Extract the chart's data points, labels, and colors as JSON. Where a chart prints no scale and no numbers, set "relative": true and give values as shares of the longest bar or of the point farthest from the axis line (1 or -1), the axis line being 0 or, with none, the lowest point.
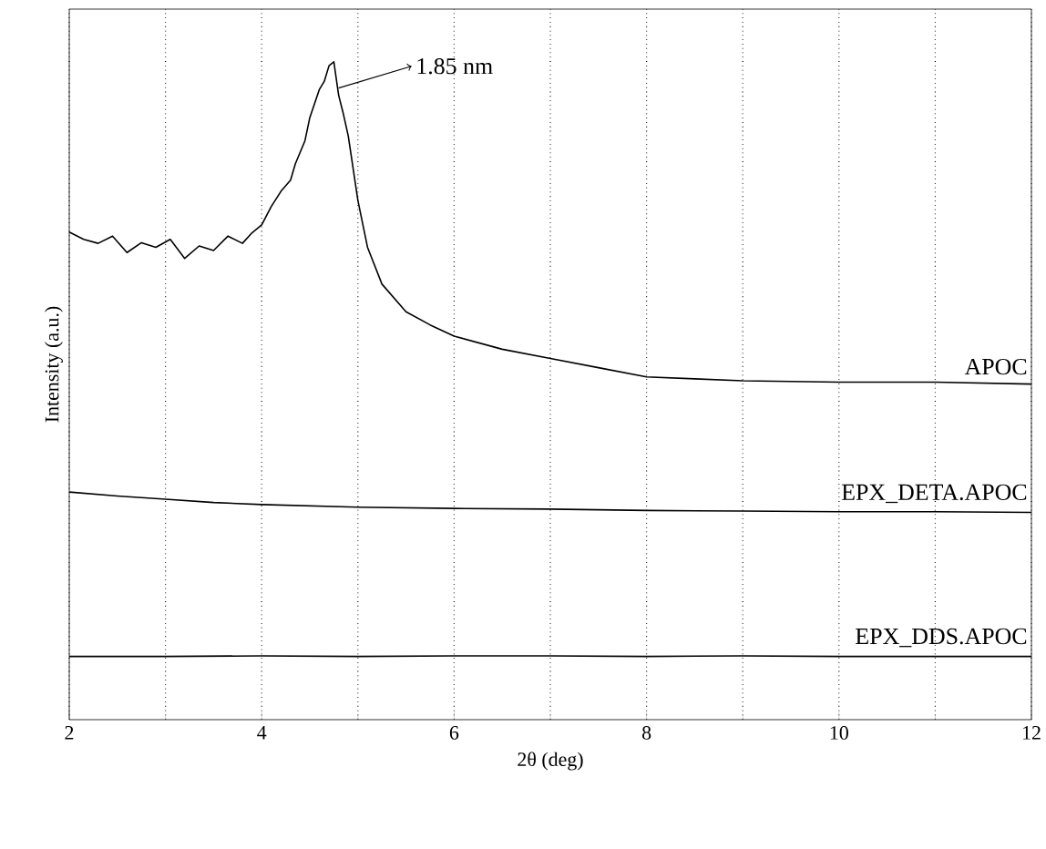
{
  "chart_data": {
    "type": "line",
    "relative": true,
    "xlabel": "2θ (deg)",
    "ylabel": "Intensity (a.u.)",
    "xlim": [
      2,
      12
    ],
    "xticks": [
      2,
      4,
      6,
      8,
      10,
      12
    ],
    "grid": "x",
    "annotations": [
      {
        "text": "1.85 nm",
        "x": 4.8,
        "y": 0.96
      }
    ],
    "series": [
      {
        "name": "APOC",
        "color": "#000000",
        "x": [
          2.0,
          2.15,
          2.3,
          2.45,
          2.6,
          2.75,
          2.9,
          3.05,
          3.2,
          3.35,
          3.5,
          3.65,
          3.8,
          3.9,
          4.0,
          4.1,
          4.2,
          4.3,
          4.35,
          4.45,
          4.5,
          4.6,
          4.65,
          4.7,
          4.75,
          4.8,
          4.85,
          4.9,
          5.0,
          5.1,
          5.25,
          5.5,
          5.75,
          6.0,
          6.5,
          7.0,
          7.5,
          8.0,
          8.5,
          9.0,
          9.5,
          10.0,
          11.0,
          12.0
        ],
        "values": [
          0.741,
          0.73,
          0.724,
          0.735,
          0.71,
          0.725,
          0.718,
          0.73,
          0.701,
          0.72,
          0.713,
          0.735,
          0.724,
          0.74,
          0.752,
          0.78,
          0.803,
          0.82,
          0.845,
          0.88,
          0.915,
          0.958,
          0.97,
          0.994,
          1.0,
          0.949,
          0.92,
          0.887,
          0.789,
          0.718,
          0.662,
          0.62,
          0.6,
          0.583,
          0.563,
          0.549,
          0.535,
          0.521,
          0.518,
          0.515,
          0.514,
          0.513,
          0.513,
          0.51
        ]
      },
      {
        "name": "EPX_DETA.APOC",
        "color": "#000000",
        "x": [
          2.0,
          2.5,
          3.0,
          3.5,
          4.0,
          5.0,
          6.0,
          7.0,
          8.0,
          9.0,
          10.0,
          11.0,
          12.0
        ],
        "values": [
          0.346,
          0.34,
          0.335,
          0.33,
          0.327,
          0.323,
          0.321,
          0.32,
          0.318,
          0.317,
          0.316,
          0.316,
          0.315
        ]
      },
      {
        "name": "EPX_DDS.APOC",
        "color": "#000000",
        "x": [
          2.0,
          3.0,
          4.0,
          5.0,
          6.0,
          7.0,
          8.0,
          9.0,
          10.0,
          11.0,
          12.0
        ],
        "values": [
          0.096,
          0.096,
          0.097,
          0.096,
          0.097,
          0.097,
          0.096,
          0.097,
          0.096,
          0.096,
          0.096
        ]
      }
    ]
  }
}
